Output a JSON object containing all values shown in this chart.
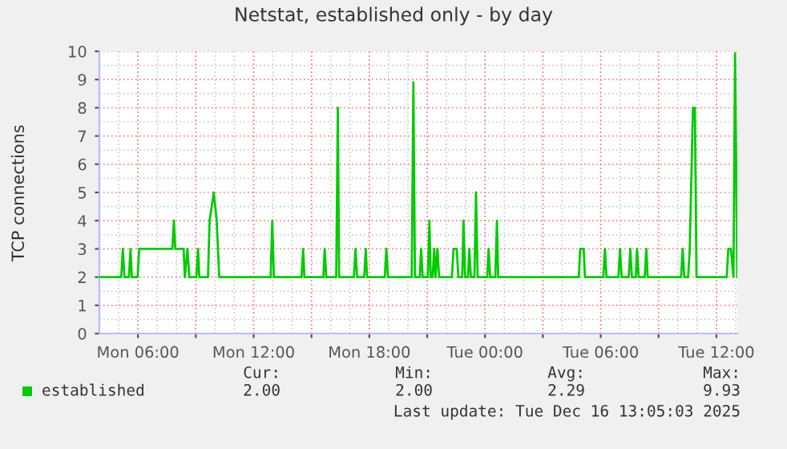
{
  "chart_data": {
    "type": "line",
    "title": "Netstat, established only - by day",
    "ylabel": "TCP connections",
    "x": [
      "2025-12-15T04:00",
      "2025-12-15T05:08",
      "2025-12-15T05:13",
      "2025-12-15T05:18",
      "2025-12-15T05:32",
      "2025-12-15T05:37",
      "2025-12-15T05:41",
      "2025-12-15T05:59",
      "2025-12-15T06:04",
      "2025-12-15T07:47",
      "2025-12-15T07:52",
      "2025-12-15T07:56",
      "2025-12-15T08:22",
      "2025-12-15T08:26",
      "2025-12-15T08:34",
      "2025-12-15T08:40",
      "2025-12-15T09:02",
      "2025-12-15T09:07",
      "2025-12-15T09:11",
      "2025-12-15T09:38",
      "2025-12-15T09:43",
      "2025-12-15T09:56",
      "2025-12-15T10:05",
      "2025-12-15T10:13",
      "2025-12-15T12:53",
      "2025-12-15T12:58",
      "2025-12-15T13:03",
      "2025-12-15T14:29",
      "2025-12-15T14:34",
      "2025-12-15T14:38",
      "2025-12-15T15:37",
      "2025-12-15T15:41",
      "2025-12-15T15:46",
      "2025-12-15T16:17",
      "2025-12-15T16:22",
      "2025-12-15T16:26",
      "2025-12-15T17:12",
      "2025-12-15T17:17",
      "2025-12-15T17:22",
      "2025-12-15T17:44",
      "2025-12-15T17:49",
      "2025-12-15T17:53",
      "2025-12-15T18:48",
      "2025-12-15T18:53",
      "2025-12-15T18:58",
      "2025-12-15T20:12",
      "2025-12-15T20:17",
      "2025-12-15T20:22",
      "2025-12-15T20:37",
      "2025-12-15T20:41",
      "2025-12-15T20:46",
      "2025-12-15T21:02",
      "2025-12-15T21:07",
      "2025-12-15T21:11",
      "2025-12-15T21:17",
      "2025-12-15T21:22",
      "2025-12-15T21:26",
      "2025-12-15T21:32",
      "2025-12-15T21:37",
      "2025-12-15T22:17",
      "2025-12-15T22:22",
      "2025-12-15T22:32",
      "2025-12-15T22:37",
      "2025-12-15T22:49",
      "2025-12-15T22:53",
      "2025-12-15T22:58",
      "2025-12-15T23:07",
      "2025-12-15T23:11",
      "2025-12-15T23:16",
      "2025-12-15T23:27",
      "2025-12-15T23:32",
      "2025-12-15T23:37",
      "2025-12-16T00:07",
      "2025-12-16T00:11",
      "2025-12-16T00:16",
      "2025-12-16T00:32",
      "2025-12-16T00:37",
      "2025-12-16T00:41",
      "2025-12-16T04:52",
      "2025-12-16T04:56",
      "2025-12-16T05:07",
      "2025-12-16T05:11",
      "2025-12-16T06:08",
      "2025-12-16T06:13",
      "2025-12-16T06:18",
      "2025-12-16T06:55",
      "2025-12-16T07:00",
      "2025-12-16T07:05",
      "2025-12-16T07:27",
      "2025-12-16T07:32",
      "2025-12-16T07:37",
      "2025-12-16T07:49",
      "2025-12-16T07:53",
      "2025-12-16T07:58",
      "2025-12-16T08:17",
      "2025-12-16T08:22",
      "2025-12-16T08:26",
      "2025-12-16T10:10",
      "2025-12-16T10:15",
      "2025-12-16T10:20",
      "2025-12-16T10:32",
      "2025-12-16T10:37",
      "2025-12-16T10:47",
      "2025-12-16T10:53",
      "2025-12-16T10:58",
      "2025-12-16T12:32",
      "2025-12-16T12:37",
      "2025-12-16T12:45",
      "2025-12-16T12:53",
      "2025-12-16T12:58",
      "2025-12-16T13:05"
    ],
    "series": [
      {
        "name": "established",
        "color": "#00cc00",
        "values": [
          2,
          2,
          3,
          2,
          2,
          3,
          2,
          2,
          3,
          3,
          4,
          3,
          3,
          2,
          3,
          2,
          2,
          3,
          2,
          2,
          4,
          5,
          4,
          2,
          2,
          4,
          2,
          2,
          3,
          2,
          2,
          3,
          2,
          2,
          8,
          2,
          2,
          3,
          2,
          2,
          3,
          2,
          2,
          3,
          2,
          2,
          8.9,
          2,
          2,
          3,
          2,
          2,
          4,
          2,
          2,
          3,
          2,
          3,
          2,
          2,
          3,
          3,
          2,
          2,
          4,
          2,
          2,
          3,
          2,
          2,
          5,
          2,
          2,
          3,
          2,
          2,
          4,
          2,
          2,
          3,
          3,
          2,
          2,
          3,
          2,
          2,
          3,
          2,
          2,
          3,
          2,
          2,
          3,
          2,
          2,
          3,
          2,
          2,
          3,
          2,
          2,
          3,
          8,
          8,
          2,
          2,
          3,
          3,
          2,
          9.93,
          2
        ]
      }
    ],
    "xlim": [
      "2025-12-15T04:00",
      "2025-12-16T13:05"
    ],
    "ylim": [
      0,
      10
    ],
    "xticks": [
      {
        "value": "2025-12-15T06:00",
        "label": "Mon 06:00"
      },
      {
        "value": "2025-12-15T09:00",
        "label": null
      },
      {
        "value": "2025-12-15T12:00",
        "label": "Mon 12:00"
      },
      {
        "value": "2025-12-15T15:00",
        "label": null
      },
      {
        "value": "2025-12-15T18:00",
        "label": "Mon 18:00"
      },
      {
        "value": "2025-12-15T21:00",
        "label": null
      },
      {
        "value": "2025-12-16T00:00",
        "label": "Tue 00:00"
      },
      {
        "value": "2025-12-16T03:00",
        "label": null
      },
      {
        "value": "2025-12-16T06:00",
        "label": "Tue 06:00"
      },
      {
        "value": "2025-12-16T09:00",
        "label": null
      },
      {
        "value": "2025-12-16T12:00",
        "label": "Tue 12:00"
      }
    ],
    "yticks": [
      0,
      1,
      2,
      3,
      4,
      5,
      6,
      7,
      8,
      9,
      10
    ],
    "grid": true,
    "legend": "bottom",
    "line_style": "solid",
    "marker": "none",
    "annotations": [
      "Cur:",
      "Min:",
      "Avg:",
      "Max:",
      "2.00",
      "2.00",
      "2.29",
      "9.93",
      "Last update: Tue Dec 16 13:05:03 2025"
    ]
  }
}
